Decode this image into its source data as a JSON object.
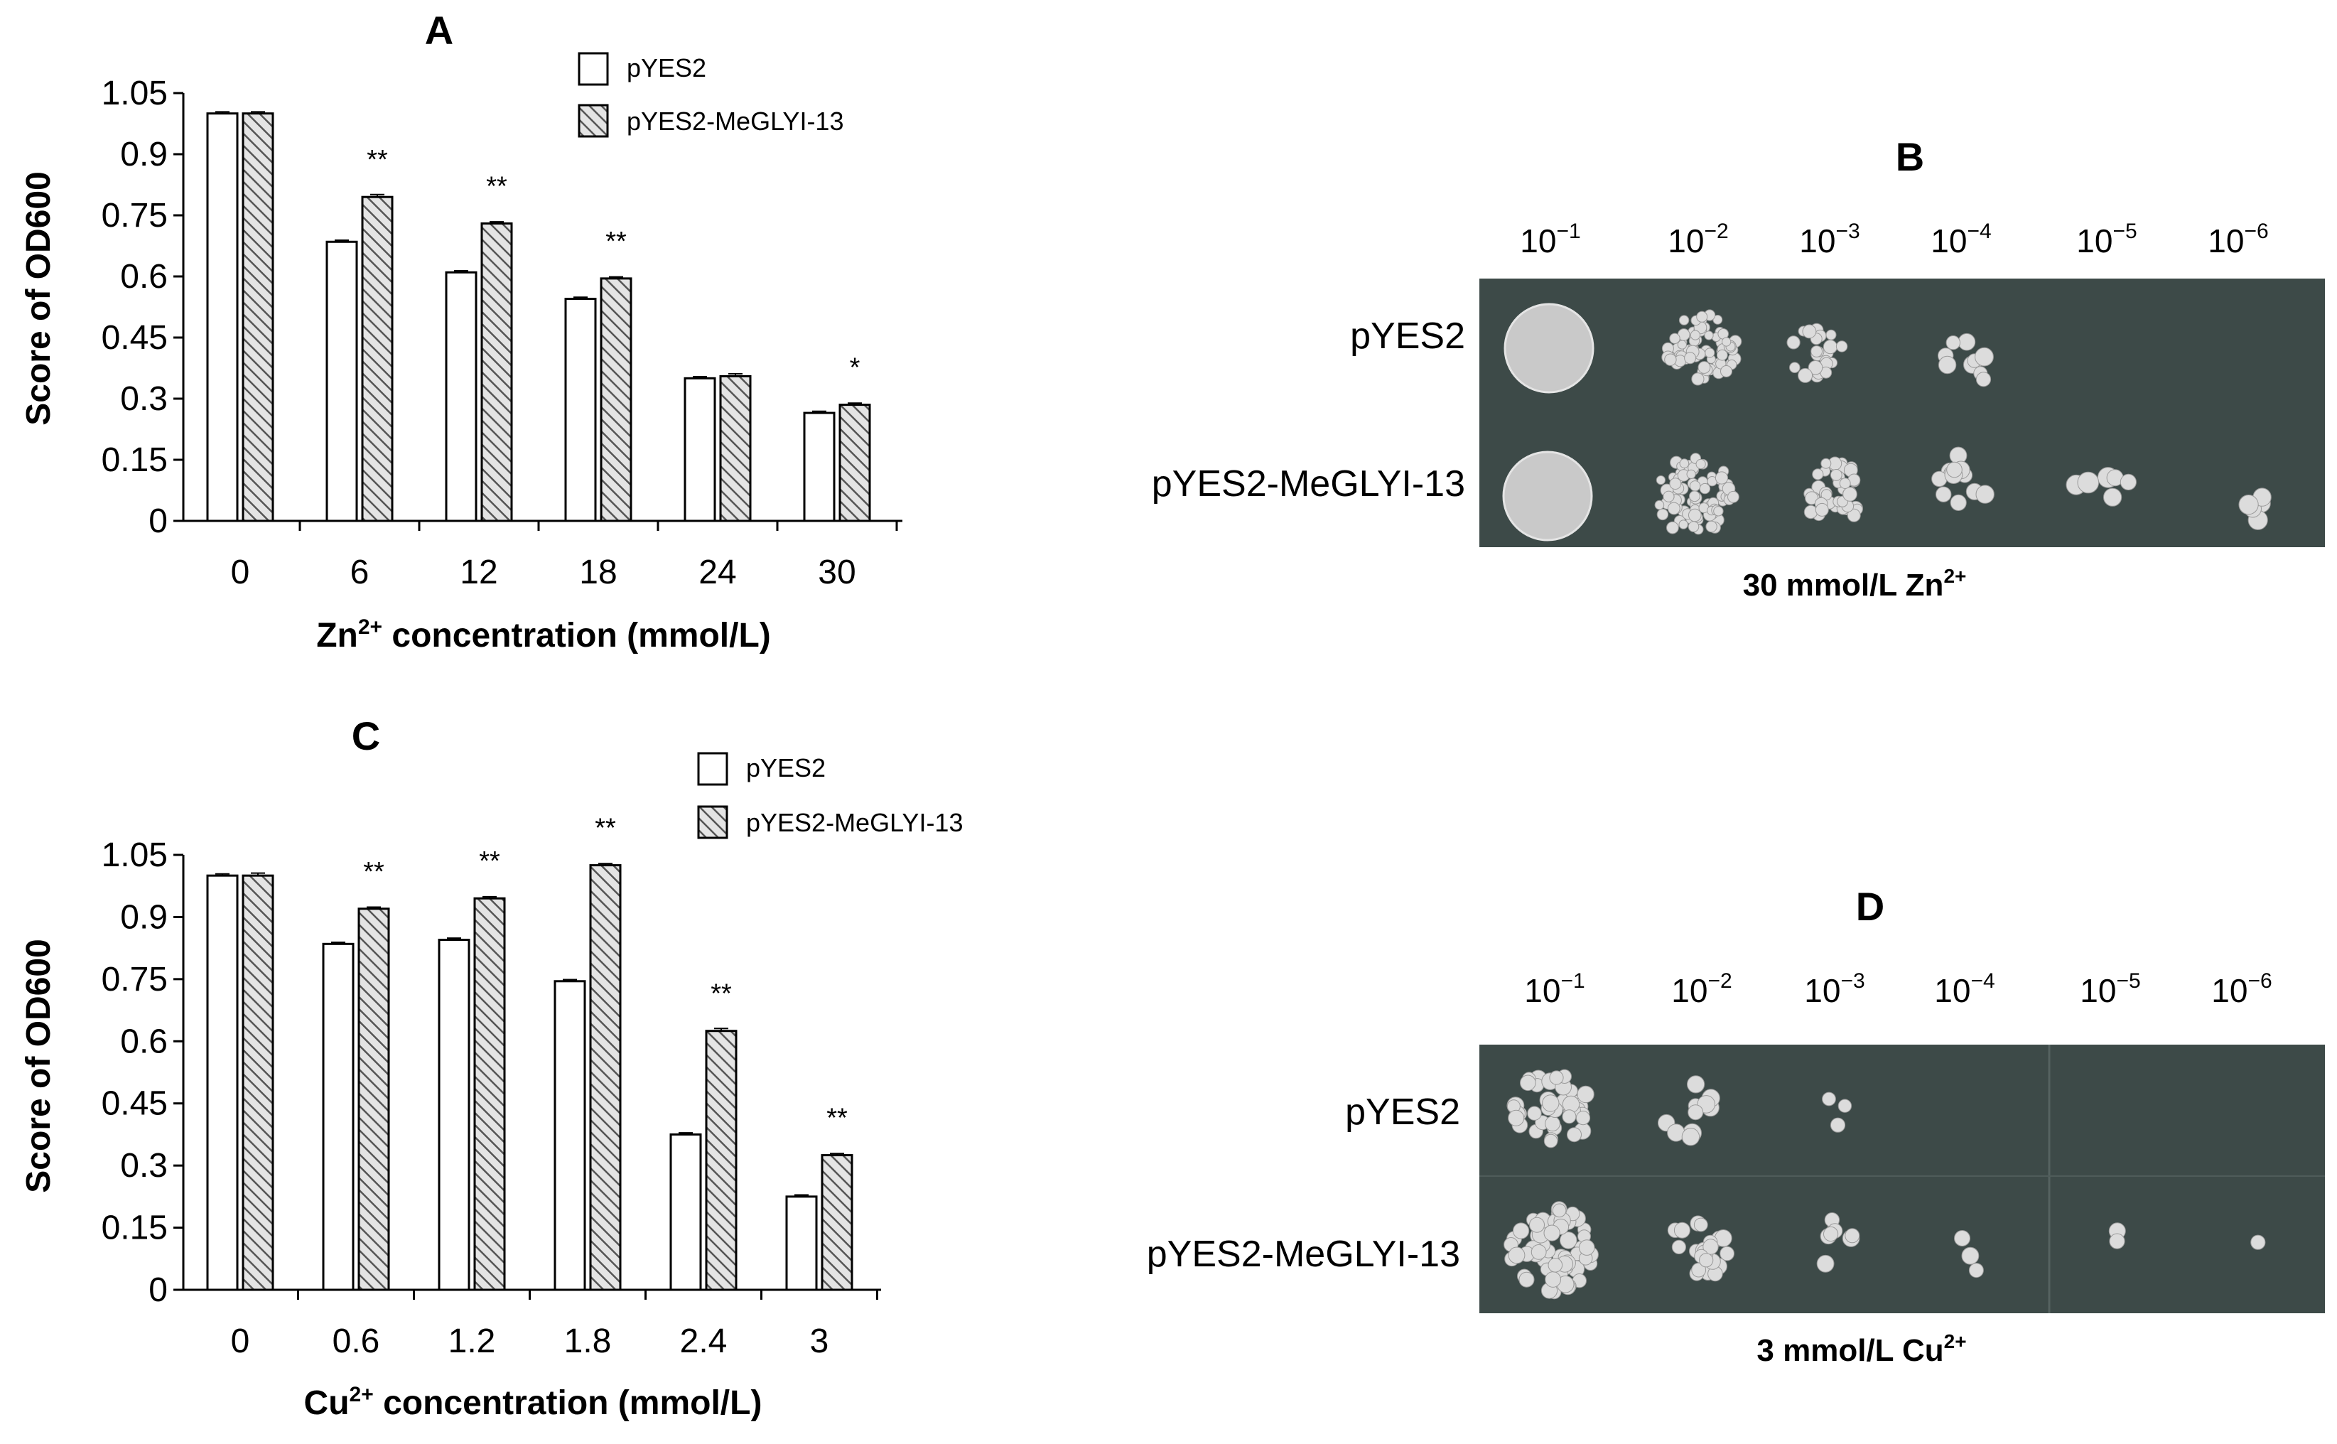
{
  "colors": {
    "bar_fill_pyes2": "#ffffff",
    "bar_fill_megly": "#cfcfcf",
    "hatch_line": "#555555",
    "bar_stroke": "#000000",
    "plate_background": "#3d4a48",
    "colony": "#d9dada"
  },
  "chart_data": [
    {
      "panel": "A",
      "type": "bar",
      "xlabel": "Zn2+ concentration (mmol/L)",
      "xlabel_parts": [
        "Zn",
        "2+",
        " concentration (mmol/L)"
      ],
      "ylabel": "Score of OD600",
      "ylim": [
        0,
        1.05
      ],
      "yticks": [
        "0",
        "0.15",
        "0.3",
        "0.45",
        "0.6",
        "0.75",
        "0.9",
        "1.05"
      ],
      "categories": [
        "0",
        "6",
        "12",
        "18",
        "24",
        "30"
      ],
      "legend_position": "top-right",
      "series": [
        {
          "name": "pYES2",
          "values": [
            1.0,
            0.685,
            0.61,
            0.545,
            0.35,
            0.265
          ],
          "errors": [
            0.004,
            0.004,
            0.004,
            0.004,
            0.004,
            0.004
          ]
        },
        {
          "name": "pYES2-MeGLYI-13",
          "values": [
            1.0,
            0.795,
            0.73,
            0.595,
            0.355,
            0.285
          ],
          "errors": [
            0.004,
            0.006,
            0.004,
            0.004,
            0.006,
            0.004
          ]
        }
      ],
      "significance": [
        "",
        "**",
        "**",
        "**",
        "",
        "*"
      ]
    },
    {
      "panel": "C",
      "type": "bar",
      "xlabel": "Cu2+ concentration (mmol/L)",
      "xlabel_parts": [
        "Cu",
        "2+",
        " concentration (mmol/L)"
      ],
      "ylabel": "Score of OD600",
      "ylim": [
        0,
        1.05
      ],
      "yticks": [
        "0",
        "0.15",
        "0.3",
        "0.45",
        "0.6",
        "0.75",
        "0.9",
        "1.05"
      ],
      "categories": [
        "0",
        "0.6",
        "1.2",
        "1.8",
        "2.4",
        "3"
      ],
      "legend_position": "top-right",
      "series": [
        {
          "name": "pYES2",
          "values": [
            1.0,
            0.835,
            0.845,
            0.745,
            0.375,
            0.225
          ],
          "errors": [
            0.004,
            0.004,
            0.004,
            0.004,
            0.004,
            0.004
          ]
        },
        {
          "name": "pYES2-MeGLYI-13",
          "values": [
            1.0,
            0.92,
            0.945,
            1.025,
            0.625,
            0.325
          ],
          "errors": [
            0.006,
            0.004,
            0.004,
            0.004,
            0.006,
            0.004
          ]
        }
      ],
      "significance": [
        "",
        "**",
        "**",
        "**",
        "**",
        "**"
      ]
    }
  ],
  "plates": [
    {
      "panel": "B",
      "dilutions": [
        {
          "base": "10",
          "exp": "−1"
        },
        {
          "base": "10",
          "exp": "−2"
        },
        {
          "base": "10",
          "exp": "−3"
        },
        {
          "base": "10",
          "exp": "−4"
        },
        {
          "base": "10",
          "exp": "−5"
        },
        {
          "base": "10",
          "exp": "−6"
        }
      ],
      "rows": [
        "pYES2",
        "pYES2-MeGLYI-13"
      ],
      "caption_parts": [
        "30 mmol/L Zn",
        "2+"
      ]
    },
    {
      "panel": "D",
      "dilutions": [
        {
          "base": "10",
          "exp": "−1"
        },
        {
          "base": "10",
          "exp": "−2"
        },
        {
          "base": "10",
          "exp": "−3"
        },
        {
          "base": "10",
          "exp": "−4"
        },
        {
          "base": "10",
          "exp": "−5"
        },
        {
          "base": "10",
          "exp": "−6"
        }
      ],
      "rows": [
        "pYES2",
        "pYES2-MeGLYI-13"
      ],
      "caption_parts": [
        "3 mmol/L Cu",
        "2+"
      ]
    }
  ]
}
